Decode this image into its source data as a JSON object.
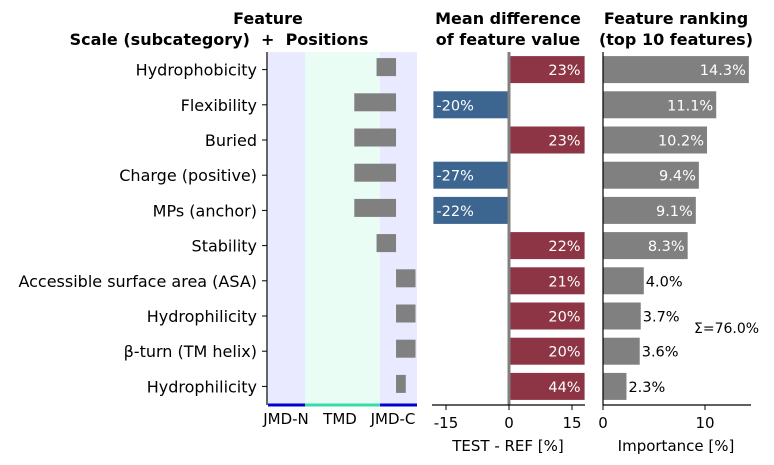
{
  "panels": {
    "positions": {
      "title_line1": "Feature",
      "title_line2": "Scale (subcategory)  +  Positions",
      "region_labels": [
        "JMD-N",
        "TMD",
        "JMD-C"
      ]
    },
    "difference": {
      "title_line1": "Mean difference",
      "title_line2": "of feature value",
      "xlabel": "TEST - REF [%]",
      "ticks": [
        "-15",
        "0",
        "15"
      ]
    },
    "ranking": {
      "title_line1": "Feature ranking",
      "title_line2": "(top 10 features)",
      "xlabel": "Importance [%]",
      "ticks": [
        "0",
        "10"
      ],
      "sum_label": "Σ=76.0%"
    }
  },
  "colors": {
    "positive": "#8e3545",
    "negative": "#3c6590",
    "importance": "#808080",
    "position_bar": "#808080",
    "jmd_background": "#e9eaff",
    "tmd_background": "#eafdf5",
    "jmd_axis": "#0000cc",
    "tmd_axis": "#33ddaa"
  },
  "chart_data": [
    {
      "type": "bar",
      "title": "Positions",
      "categories": [
        "Hydrophobicity",
        "Flexibility",
        "Buried",
        "Charge (positive)",
        "MPs (anchor)",
        "Stability",
        "Accessible surface area (ASA)",
        "Hydrophilicity",
        "β-turn (TM helix)",
        "Hydrophilicity"
      ],
      "regions": [
        "JMD-N",
        "TMD",
        "JMD-C"
      ],
      "position_spans": [
        [
          0.78,
          0.92
        ],
        [
          0.62,
          0.92
        ],
        [
          0.62,
          0.92
        ],
        [
          0.62,
          0.92
        ],
        [
          0.62,
          0.92
        ],
        [
          0.78,
          0.92
        ],
        [
          0.92,
          1.06
        ],
        [
          0.92,
          1.06
        ],
        [
          0.92,
          1.06
        ],
        [
          0.92,
          0.99
        ]
      ]
    },
    {
      "type": "bar",
      "orientation": "horizontal",
      "title": "Mean difference of feature value",
      "xlabel": "TEST - REF [%]",
      "categories": [
        "Hydrophobicity",
        "Flexibility",
        "Buried",
        "Charge (positive)",
        "MPs (anchor)",
        "Stability",
        "Accessible surface area (ASA)",
        "Hydrophilicity",
        "β-turn (TM helix)",
        "Hydrophilicity"
      ],
      "values": [
        23,
        -20,
        23,
        -27,
        -22,
        22,
        21,
        20,
        20,
        44
      ],
      "labels": [
        "23%",
        "-20%",
        "23%",
        "-27%",
        "-22%",
        "22%",
        "21%",
        "20%",
        "20%",
        "44%"
      ],
      "xlim": [
        -18,
        18
      ]
    },
    {
      "type": "bar",
      "orientation": "horizontal",
      "title": "Feature ranking (top 10 features)",
      "xlabel": "Importance [%]",
      "categories": [
        "Hydrophobicity",
        "Flexibility",
        "Buried",
        "Charge (positive)",
        "MPs (anchor)",
        "Stability",
        "Accessible surface area (ASA)",
        "Hydrophilicity",
        "β-turn (TM helix)",
        "Hydrophilicity"
      ],
      "values": [
        14.3,
        11.1,
        10.2,
        9.4,
        9.1,
        8.3,
        4.0,
        3.7,
        3.6,
        2.3
      ],
      "labels": [
        "14.3%",
        "11.1%",
        "10.2%",
        "9.4%",
        "9.1%",
        "8.3%",
        "4.0%",
        "3.7%",
        "3.6%",
        "2.3%"
      ],
      "xlim": [
        0,
        14.5
      ],
      "total_label": "Σ=76.0%"
    }
  ]
}
